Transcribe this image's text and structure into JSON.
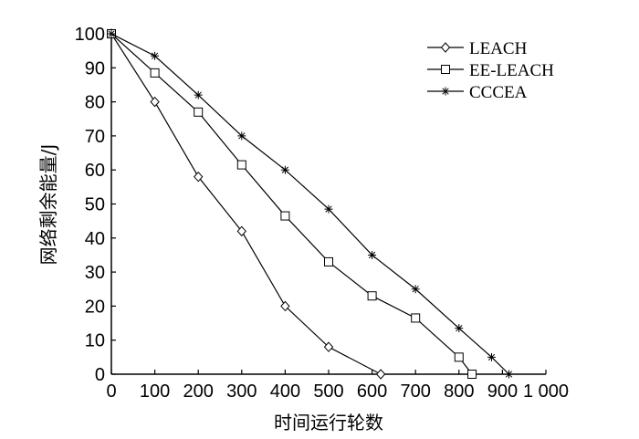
{
  "chart_data": {
    "type": "line",
    "xlabel": "时间运行轮数",
    "ylabel": "网络剩余能量/J",
    "xlim": [
      0,
      1000
    ],
    "ylim": [
      0,
      100
    ],
    "x_ticks": [
      0,
      100,
      200,
      300,
      400,
      500,
      600,
      700,
      800,
      900,
      1000
    ],
    "x_tick_labels": [
      "0",
      "100",
      "200",
      "300",
      "400",
      "500",
      "600",
      "700",
      "800",
      "900",
      "1 000"
    ],
    "y_ticks": [
      0,
      10,
      20,
      30,
      40,
      50,
      60,
      70,
      80,
      90,
      100
    ],
    "y_tick_labels": [
      "0",
      "10",
      "20",
      "30",
      "40",
      "50",
      "60",
      "70",
      "80",
      "90",
      "100"
    ],
    "grid": false,
    "legend_position": "top-right",
    "series": [
      {
        "name": "LEACH",
        "marker": "diamond",
        "x": [
          0,
          100,
          200,
          300,
          400,
          500,
          620
        ],
        "y": [
          100,
          80,
          58,
          42,
          20,
          8,
          0
        ]
      },
      {
        "name": "EE-LEACH",
        "marker": "square",
        "x": [
          0,
          100,
          200,
          300,
          400,
          500,
          600,
          700,
          800,
          830
        ],
        "y": [
          100,
          88.5,
          77,
          61.5,
          46.5,
          33,
          23,
          16.5,
          5,
          0
        ]
      },
      {
        "name": "CCCEA",
        "marker": "star",
        "x": [
          0,
          100,
          200,
          300,
          400,
          500,
          600,
          700,
          800,
          875,
          915
        ],
        "y": [
          100,
          93.5,
          82,
          70,
          60,
          48.5,
          35,
          25,
          13.5,
          5,
          0
        ]
      }
    ]
  }
}
